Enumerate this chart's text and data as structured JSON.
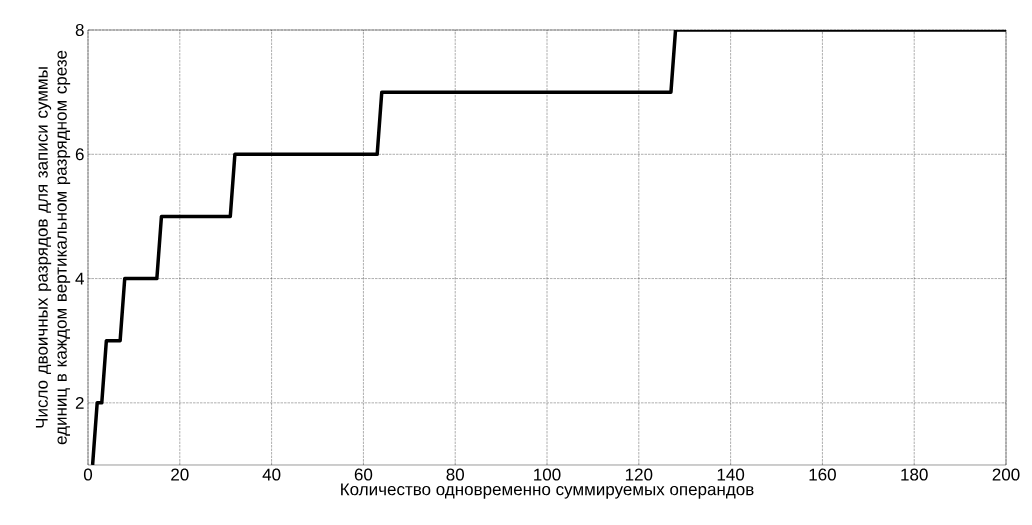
{
  "chart_data": {
    "type": "line",
    "xlabel": "Количество одновременно суммируемых операндов",
    "ylabel": "Число двоичных разрядов для записи суммы единиц в каждом вертикальном разрядном срезе",
    "x": [
      1,
      2,
      3,
      4,
      7,
      8,
      15,
      16,
      31,
      32,
      63,
      64,
      127,
      128,
      200
    ],
    "series": [
      {
        "color": "#000000",
        "values": [
          1,
          2,
          2,
          3,
          3,
          4,
          4,
          5,
          5,
          6,
          6,
          7,
          7,
          8,
          8
        ]
      }
    ],
    "xlim": [
      0,
      200
    ],
    "ylim": [
      1,
      8
    ],
    "xticks": [
      0,
      20,
      40,
      60,
      80,
      100,
      120,
      140,
      160,
      180,
      200
    ],
    "yticks": [
      2,
      4,
      6,
      8
    ],
    "grid": true,
    "marker": "none",
    "line_style": "solid"
  }
}
